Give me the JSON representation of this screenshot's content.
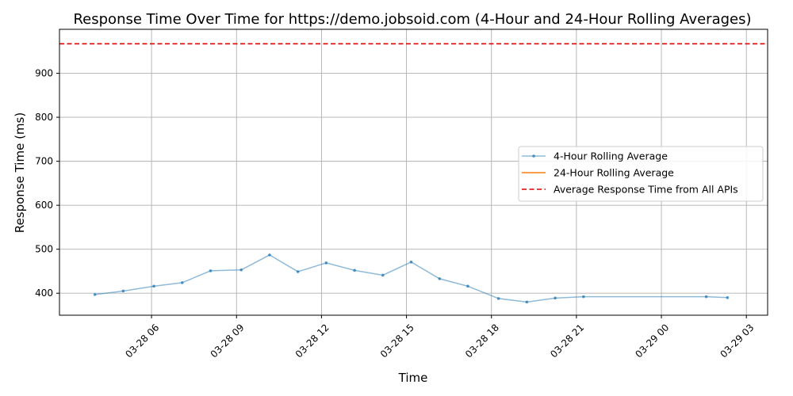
{
  "chart_data": {
    "type": "line",
    "title": "Response Time Over Time for https://demo.jobsoid.com (4-Hour and 24-Hour Rolling Averages)",
    "xlabel": "Time",
    "ylabel": "Response Time (ms)",
    "xlim": [
      "2024-03-28 02:45",
      "2024-03-29 03:45"
    ],
    "ylim": [
      350,
      1000
    ],
    "grid": true,
    "legend_position": "center-right",
    "x_ticks": [
      {
        "t": "2024-03-28 06:00",
        "label": "03-28 06"
      },
      {
        "t": "2024-03-28 09:00",
        "label": "03-28 09"
      },
      {
        "t": "2024-03-28 12:00",
        "label": "03-28 12"
      },
      {
        "t": "2024-03-28 15:00",
        "label": "03-28 15"
      },
      {
        "t": "2024-03-28 18:00",
        "label": "03-28 18"
      },
      {
        "t": "2024-03-28 21:00",
        "label": "03-28 21"
      },
      {
        "t": "2024-03-29 00:00",
        "label": "03-29 00"
      },
      {
        "t": "2024-03-29 03:00",
        "label": "03-29 03"
      }
    ],
    "y_ticks": [
      400,
      500,
      600,
      700,
      800,
      900
    ],
    "series": [
      {
        "name": "4-Hour Rolling Average",
        "color": "#1f77b4",
        "style": "line-with-dots",
        "x": [
          "2024-03-28 04:00",
          "2024-03-28 05:00",
          "2024-03-28 06:05",
          "2024-03-28 07:05",
          "2024-03-28 08:05",
          "2024-03-28 09:10",
          "2024-03-28 10:10",
          "2024-03-28 11:10",
          "2024-03-28 12:10",
          "2024-03-28 13:10",
          "2024-03-28 14:10",
          "2024-03-28 15:10",
          "2024-03-28 16:10",
          "2024-03-28 17:10",
          "2024-03-28 18:15",
          "2024-03-28 19:15",
          "2024-03-28 20:15",
          "2024-03-28 21:15",
          "2024-03-29 01:35",
          "2024-03-29 02:20"
        ],
        "values": [
          397,
          405,
          416,
          424,
          451,
          453,
          487,
          449,
          469,
          452,
          441,
          471,
          433,
          416,
          388,
          380,
          389,
          392,
          392,
          390
        ]
      },
      {
        "name": "24-Hour Rolling Average",
        "color": "#ff7f0e",
        "style": "line",
        "x": [],
        "values": []
      }
    ],
    "reference_lines": [
      {
        "name": "Average Response Time from All APIs",
        "y": 967,
        "color": "#e00000",
        "style": "dashed"
      }
    ]
  }
}
